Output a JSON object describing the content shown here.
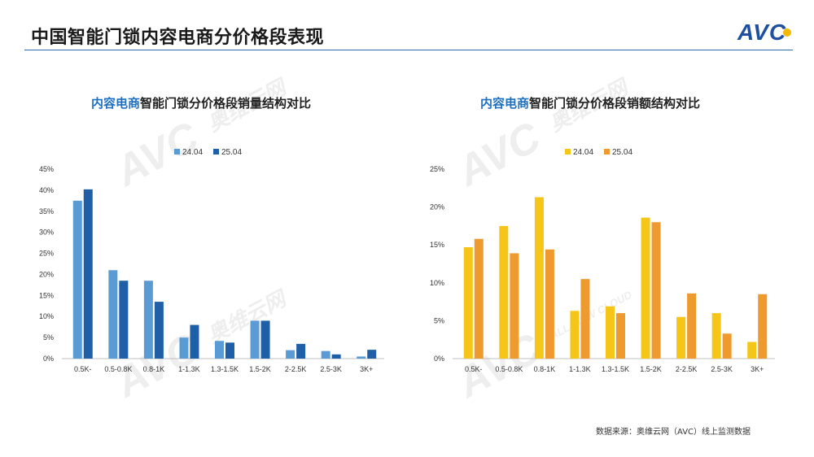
{
  "header": {
    "title": "中国智能门锁内容电商分价格段表现",
    "logo_text": "AVC"
  },
  "watermark": {
    "brand": "AVC",
    "cn": "奥维云网",
    "en": "ALL VIEW CLOUD"
  },
  "source_note": "数据来源：奥维云网（AVC）线上监测数据",
  "colors": {
    "accent": "#1f6fc0",
    "left_24": "#5b9bd5",
    "left_25": "#1f5fa8",
    "right_24": "#f5c518",
    "right_25": "#ef9a2e"
  },
  "chart_data": [
    {
      "type": "bar",
      "title_highlight": "内容电商",
      "title_rest": "智能门锁分价格段销量结构对比",
      "categories": [
        "0.5K-",
        "0.5-0.8K",
        "0.8-1K",
        "1-1.3K",
        "1.3-1.5K",
        "1.5-2K",
        "2-2.5K",
        "2.5-3K",
        "3K+"
      ],
      "series": [
        {
          "name": "24.04",
          "values": [
            37.5,
            21.0,
            18.5,
            5.0,
            4.2,
            9.0,
            2.0,
            1.8,
            0.5
          ]
        },
        {
          "name": "25.04",
          "values": [
            40.2,
            18.5,
            13.5,
            8.0,
            3.8,
            9.0,
            3.5,
            1.0,
            2.1
          ]
        }
      ],
      "ylim": [
        0,
        45
      ],
      "yticks": [
        "0%",
        "5%",
        "10%",
        "15%",
        "20%",
        "25%",
        "30%",
        "35%",
        "40%",
        "45%"
      ],
      "legend": "top-center",
      "grid": false
    },
    {
      "type": "bar",
      "title_highlight": "内容电商",
      "title_rest": "智能门锁分价格段销额结构对比",
      "categories": [
        "0.5K-",
        "0.5-0.8K",
        "0.8-1K",
        "1-1.3K",
        "1.3-1.5K",
        "1.5-2K",
        "2-2.5K",
        "2.5-3K",
        "3K+"
      ],
      "series": [
        {
          "name": "24.04",
          "values": [
            14.7,
            17.5,
            21.3,
            6.3,
            6.9,
            18.6,
            5.5,
            6.0,
            2.2
          ]
        },
        {
          "name": "25.04",
          "values": [
            15.8,
            13.9,
            14.4,
            10.5,
            6.0,
            18.0,
            8.6,
            3.3,
            8.5
          ]
        }
      ],
      "ylim": [
        0,
        25
      ],
      "yticks": [
        "0%",
        "5%",
        "10%",
        "15%",
        "20%",
        "25%"
      ],
      "legend": "top-center",
      "grid": false
    }
  ]
}
